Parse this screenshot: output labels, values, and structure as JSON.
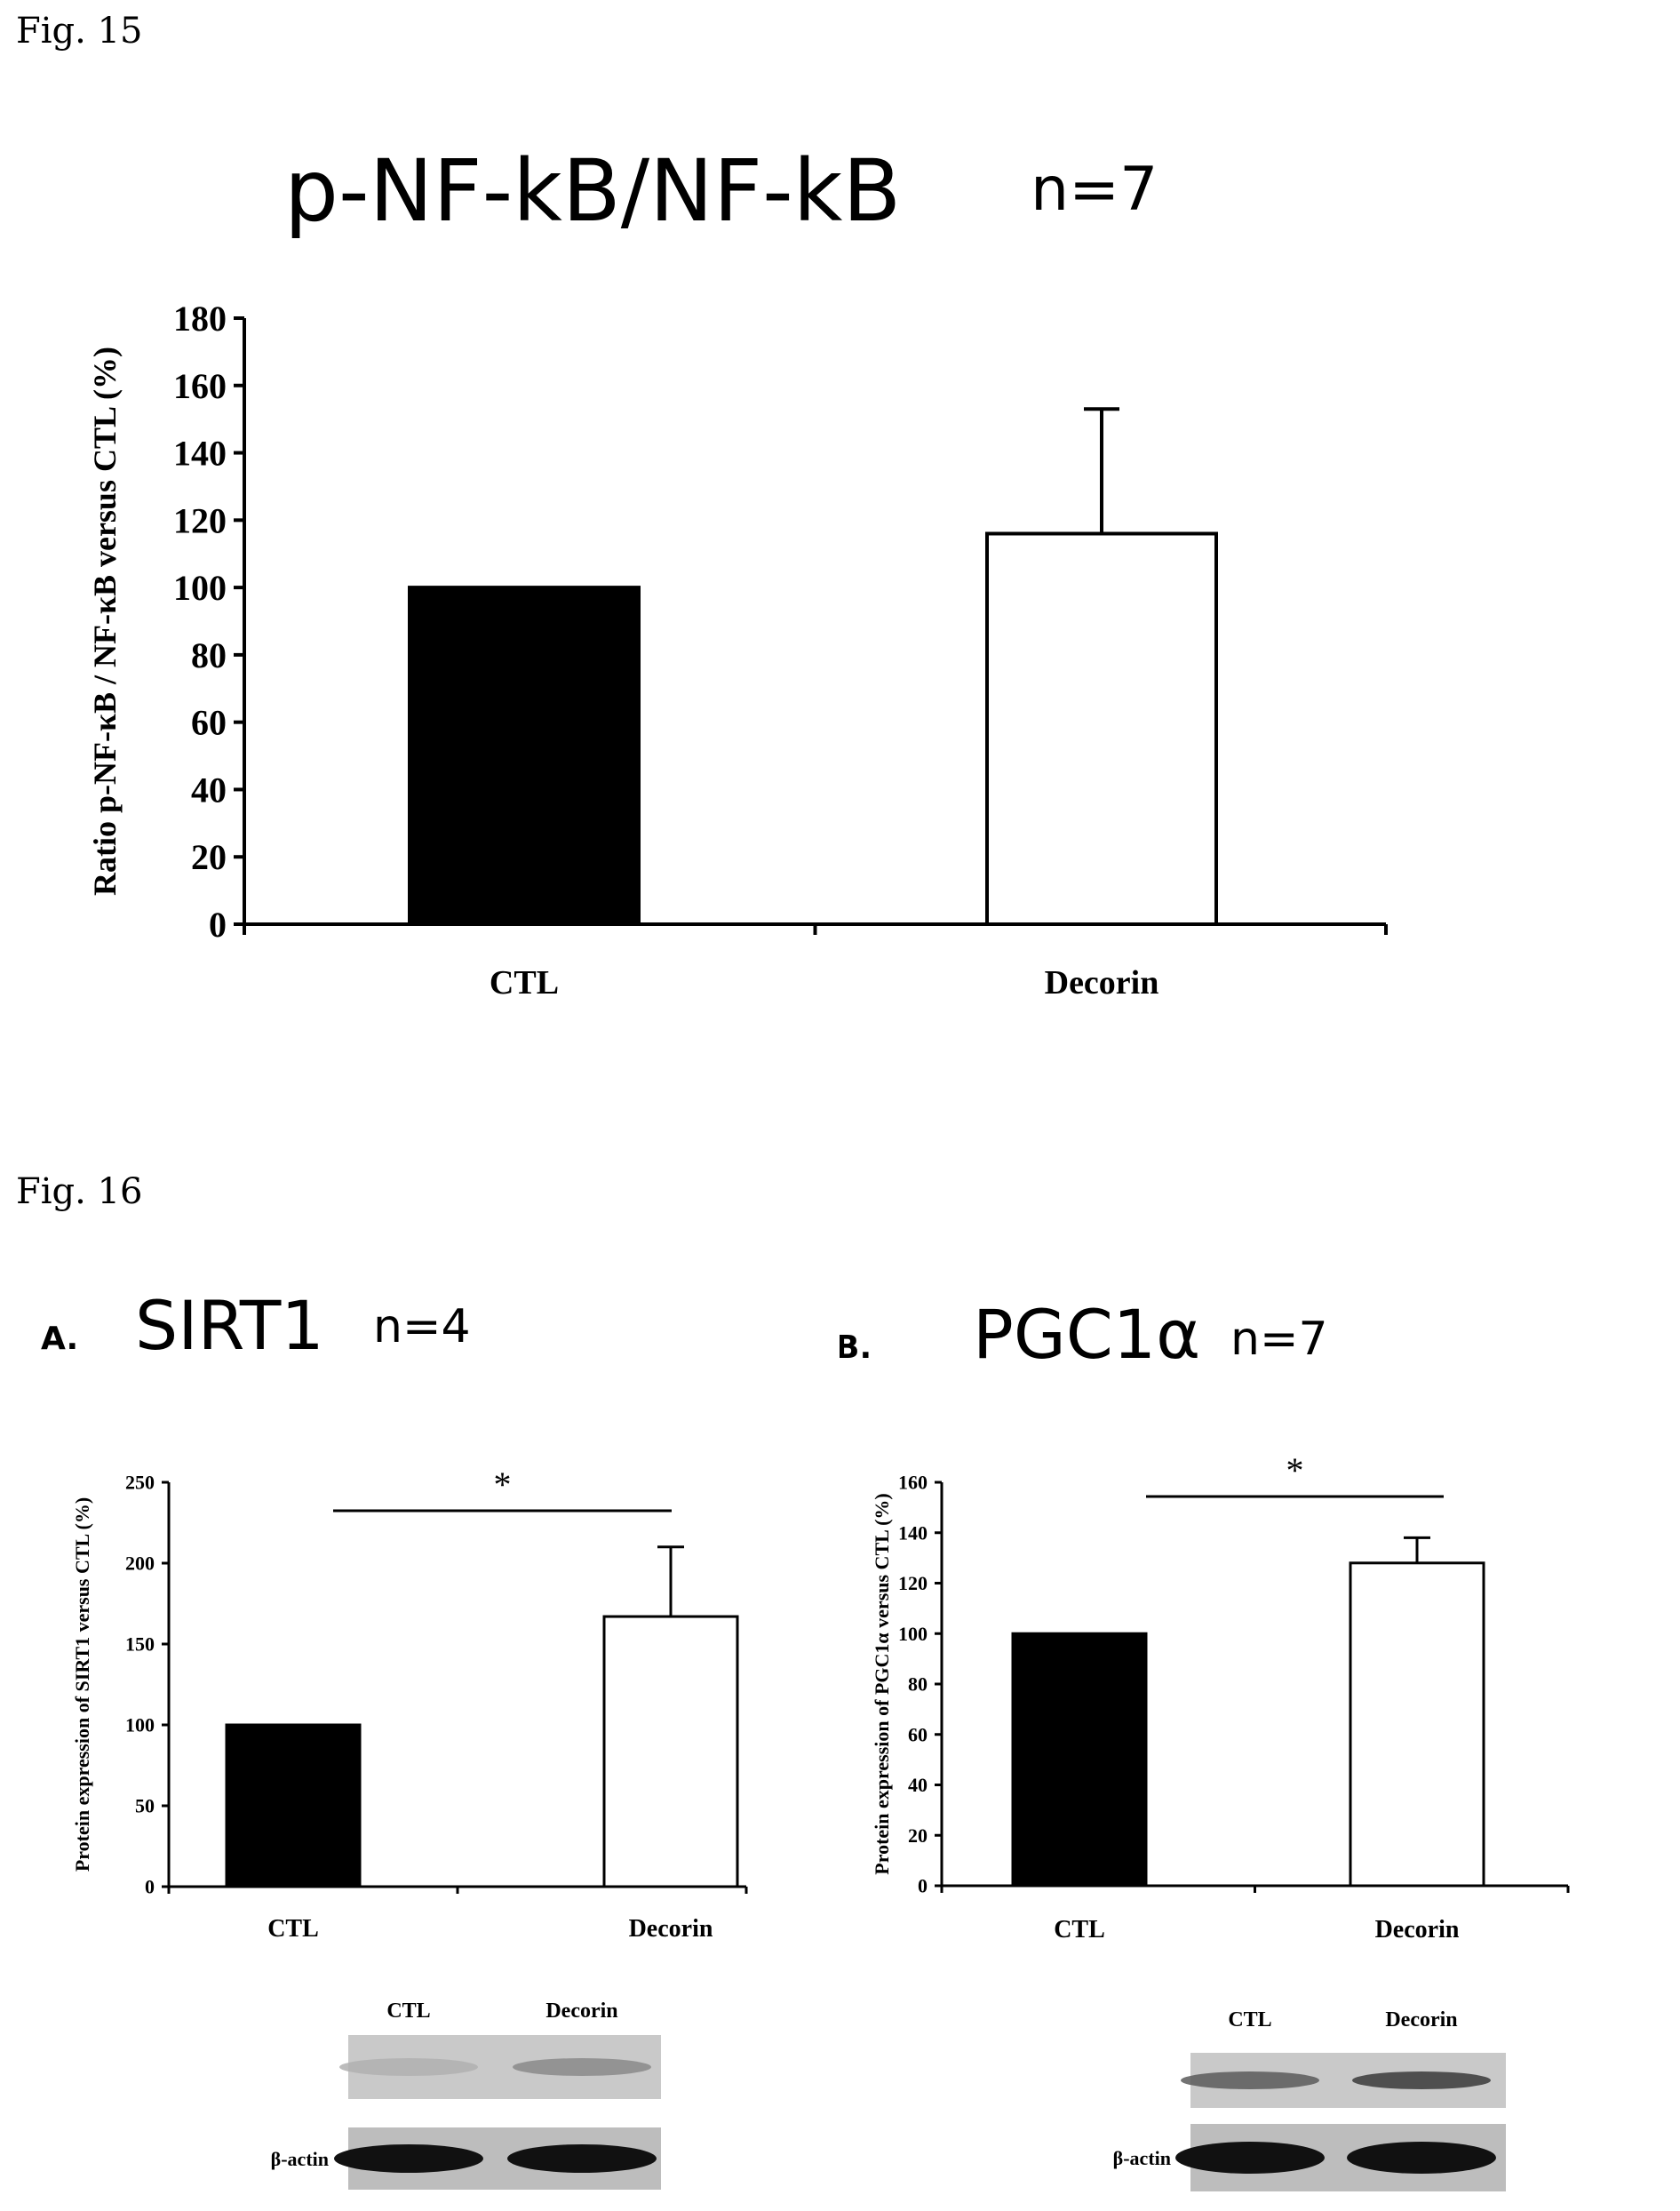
{
  "page": {
    "fig15_label": "Fig. 15",
    "fig16_label": "Fig. 16"
  },
  "chart_data": [
    {
      "id": "fig15",
      "type": "bar",
      "title": "p-NF-kB/NF-kB",
      "n_label": "n=7",
      "ylabel": "Ratio p-NF-κB / NF-κB versus CTL (%)",
      "xlabel": "",
      "categories": [
        "CTL",
        "Decorin"
      ],
      "values": [
        100,
        116
      ],
      "errors": [
        0,
        37
      ],
      "fills": [
        "#000000",
        "#ffffff"
      ],
      "ylim": [
        0,
        180
      ],
      "yticks": [
        0,
        20,
        40,
        60,
        80,
        100,
        120,
        140,
        160,
        180
      ],
      "significance": null
    },
    {
      "id": "fig16a",
      "type": "bar",
      "panel_letter": "A.",
      "title": "SIRT1",
      "n_label": "n=4",
      "ylabel": "Protein expression of SIRT1 versus CTL (%)",
      "xlabel": "",
      "categories": [
        "CTL",
        "Decorin"
      ],
      "values": [
        100,
        167
      ],
      "errors": [
        0,
        43
      ],
      "fills": [
        "#000000",
        "#ffffff"
      ],
      "ylim": [
        0,
        250
      ],
      "yticks": [
        0,
        50,
        100,
        150,
        200,
        250
      ],
      "significance": "*",
      "blot": {
        "lanes": [
          "CTL",
          "Decorin"
        ],
        "loading_control": "β-actin"
      }
    },
    {
      "id": "fig16b",
      "type": "bar",
      "panel_letter": "B.",
      "title": "PGC1α",
      "n_label": "n=7",
      "ylabel": "Protein expression of PGC1α versus CTL (%)",
      "xlabel": "",
      "categories": [
        "CTL",
        "Decorin"
      ],
      "values": [
        100,
        128
      ],
      "errors": [
        0,
        10
      ],
      "fills": [
        "#000000",
        "#ffffff"
      ],
      "ylim": [
        0,
        160
      ],
      "yticks": [
        0,
        20,
        40,
        60,
        80,
        100,
        120,
        140,
        160
      ],
      "significance": "*",
      "blot": {
        "lanes": [
          "CTL",
          "Decorin"
        ],
        "loading_control": "β-actin"
      }
    }
  ]
}
